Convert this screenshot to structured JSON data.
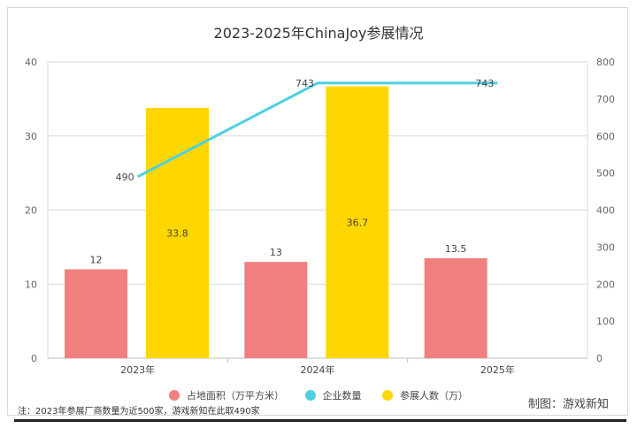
{
  "chart_data": {
    "type": "bar",
    "title": "2023-2025年ChinaJoy参展情况",
    "categories": [
      "2023年",
      "2024年",
      "2025年"
    ],
    "series": [
      {
        "name": "占地面积（万平方米）",
        "kind": "bar",
        "axis": "left",
        "color": "#f08080",
        "values": [
          12,
          13,
          13.5
        ]
      },
      {
        "name": "参展人数（万）",
        "kind": "bar",
        "axis": "left",
        "color": "#ffd700",
        "values": [
          33.8,
          36.7,
          null
        ]
      },
      {
        "name": "企业数量",
        "kind": "line",
        "axis": "right",
        "color": "#4dd0e1",
        "values": [
          490,
          743,
          743
        ]
      }
    ],
    "left_axis": {
      "ylim": [
        0,
        40
      ],
      "ticks": [
        0,
        10,
        20,
        30,
        40
      ]
    },
    "right_axis": {
      "ylim": [
        0,
        800
      ],
      "ticks": [
        0,
        100,
        200,
        300,
        400,
        500,
        600,
        700,
        800
      ]
    },
    "grid": true,
    "legend_position": "bottom"
  },
  "legend": [
    {
      "label": "占地面积（万平方米）",
      "color": "#f08080"
    },
    {
      "label": "企业数量",
      "color": "#4dd0e1"
    },
    {
      "label": "参展人数（万）",
      "color": "#ffd700"
    }
  ],
  "note": "注：2023年参展厂商数量为近500家，游戏新知在此取490家",
  "credit": "制图：游戏新知"
}
